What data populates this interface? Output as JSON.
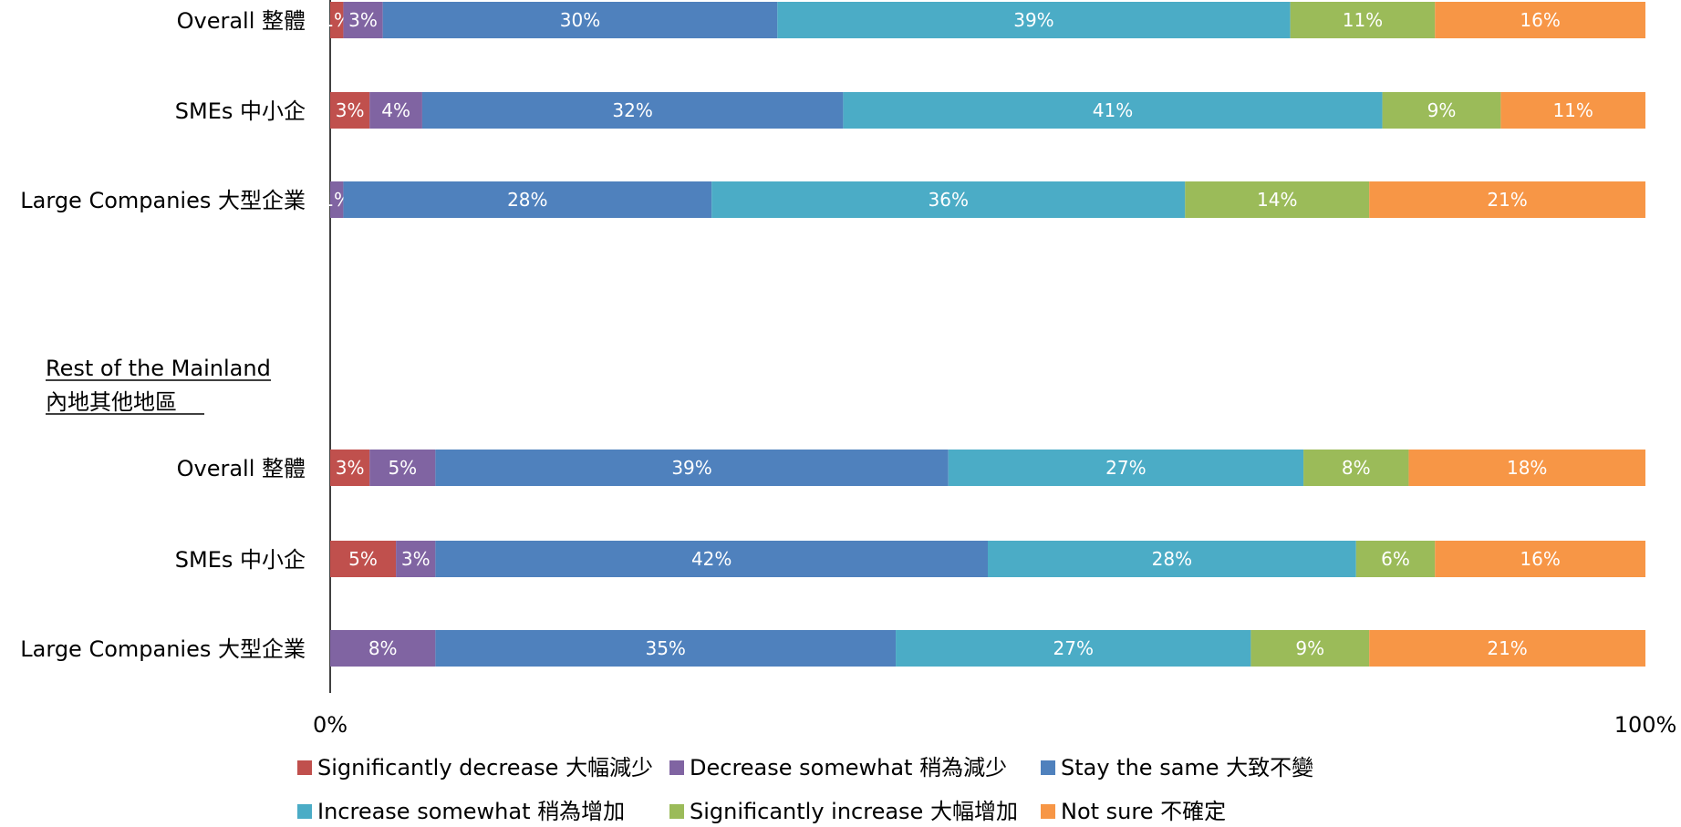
{
  "colors": {
    "significantly_decrease": "#c0504d",
    "decrease_somewhat": "#8064a2",
    "stay_same": "#4f81bd",
    "increase_somewhat": "#4bacc6",
    "significantly_increase": "#9bbb59",
    "not_sure": "#f79646"
  },
  "chart_data": {
    "type": "bar",
    "orientation": "horizontal",
    "stacked": true,
    "xlim": [
      0,
      100
    ],
    "x_ticks": [
      "0%",
      "100%"
    ],
    "legend_position": "bottom",
    "groups": [
      {
        "title": "",
        "categories": [
          "Overall 整體",
          "SMEs 中小企",
          "Large Companies 大型企業"
        ],
        "series": [
          {
            "name": "Significantly decrease 大幅減少",
            "values": [
              1,
              3,
              0
            ],
            "labels": [
              "1%",
              "3%",
              ""
            ]
          },
          {
            "name": "Decrease somewhat 稍為減少",
            "values": [
              3,
              4,
              1
            ],
            "labels": [
              "3%",
              "4%",
              "1%"
            ]
          },
          {
            "name": "Stay the same 大致不變",
            "values": [
              30,
              32,
              28
            ],
            "labels": [
              "30%",
              "32%",
              "28%"
            ]
          },
          {
            "name": "Increase somewhat 稍為增加",
            "values": [
              39,
              41,
              36
            ],
            "labels": [
              "39%",
              "41%",
              "36%"
            ]
          },
          {
            "name": "Significantly increase 大幅增加",
            "values": [
              11,
              9,
              14
            ],
            "labels": [
              "11%",
              "9%",
              "14%"
            ]
          },
          {
            "name": "Not sure 不確定",
            "values": [
              16,
              11,
              21
            ],
            "labels": [
              "16%",
              "11%",
              "21%"
            ]
          }
        ]
      },
      {
        "title": "Rest of the Mainland",
        "subtitle": "內地其他地區",
        "categories": [
          "Overall 整體",
          "SMEs 中小企",
          "Large Companies 大型企業"
        ],
        "series": [
          {
            "name": "Significantly decrease 大幅減少",
            "values": [
              3,
              5,
              0
            ],
            "labels": [
              "3%",
              "5%",
              ""
            ]
          },
          {
            "name": "Decrease somewhat 稍為減少",
            "values": [
              5,
              3,
              8
            ],
            "labels": [
              "5%",
              "3%",
              "8%"
            ]
          },
          {
            "name": "Stay the same 大致不變",
            "values": [
              39,
              42,
              35
            ],
            "labels": [
              "39%",
              "42%",
              "35%"
            ]
          },
          {
            "name": "Increase somewhat 稍為增加",
            "values": [
              27,
              28,
              27
            ],
            "labels": [
              "27%",
              "28%",
              "27%"
            ]
          },
          {
            "name": "Significantly increase 大幅增加",
            "values": [
              8,
              6,
              9
            ],
            "labels": [
              "8%",
              "6%",
              "9%"
            ]
          },
          {
            "name": "Not sure 不確定",
            "values": [
              18,
              16,
              21
            ],
            "labels": [
              "18%",
              "16%",
              "21%"
            ]
          }
        ]
      }
    ],
    "legend": [
      {
        "label": "Significantly decrease 大幅減少",
        "color_key": "significantly_decrease"
      },
      {
        "label": "Decrease somewhat 稍為減少",
        "color_key": "decrease_somewhat"
      },
      {
        "label": "Stay the same 大致不變",
        "color_key": "stay_same"
      },
      {
        "label": "Increase somewhat 稍為增加",
        "color_key": "increase_somewhat"
      },
      {
        "label": "Significantly increase 大幅增加",
        "color_key": "significantly_increase"
      },
      {
        "label": "Not sure 不確定",
        "color_key": "not_sure"
      }
    ]
  }
}
